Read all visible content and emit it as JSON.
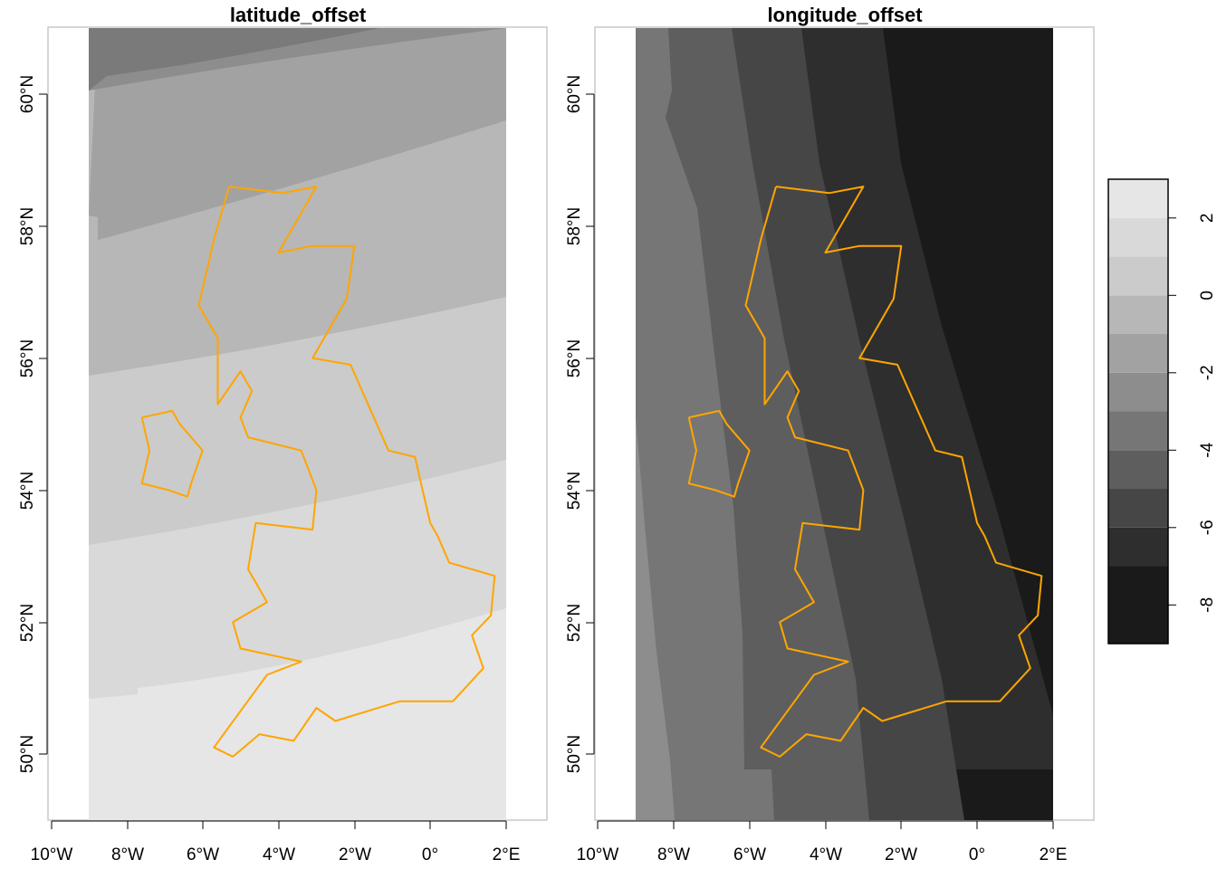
{
  "panels": [
    {
      "title": "latitude_offset",
      "x_ticks": [
        "10°W",
        "8°W",
        "6°W",
        "4°W",
        "2°W",
        "0°",
        "2°E"
      ],
      "y_ticks": [
        "50°N",
        "52°N",
        "54°N",
        "56°N",
        "58°N",
        "60°N"
      ]
    },
    {
      "title": "longitude_offset",
      "x_ticks": [
        "10°W",
        "8°W",
        "6°W",
        "4°W",
        "2°W",
        "0°",
        "2°E"
      ],
      "y_ticks": [
        "50°N",
        "52°N",
        "54°N",
        "56°N",
        "58°N",
        "60°N"
      ]
    }
  ],
  "legend": {
    "tick_labels": [
      "2",
      "0",
      "-2",
      "-4",
      "-6",
      "-8"
    ],
    "tick_values": [
      2,
      0,
      -2,
      -4,
      -6,
      -8
    ],
    "range": [
      -9,
      3
    ],
    "bins": [
      {
        "from": -9,
        "to": -7,
        "color": "#1a1a1a"
      },
      {
        "from": -7,
        "to": -6,
        "color": "#2e2e2e"
      },
      {
        "from": -6,
        "to": -5,
        "color": "#464646"
      },
      {
        "from": -5,
        "to": -4,
        "color": "#5e5e5e"
      },
      {
        "from": -4,
        "to": -3,
        "color": "#767676"
      },
      {
        "from": -3,
        "to": -2,
        "color": "#8d8d8d"
      },
      {
        "from": -2,
        "to": -1,
        "color": "#a2a2a2"
      },
      {
        "from": -1,
        "to": 0,
        "color": "#b7b7b7"
      },
      {
        "from": 0,
        "to": 1,
        "color": "#cbcbcb"
      },
      {
        "from": 1,
        "to": 2,
        "color": "#d9d9d9"
      },
      {
        "from": 2,
        "to": 3,
        "color": "#e6e6e6"
      }
    ]
  },
  "outline_color": "#ffa500",
  "map_extent": {
    "lon": [
      -9,
      2
    ],
    "lat": [
      49,
      61
    ]
  },
  "outline_coords": [
    [
      -5.3,
      58.6
    ],
    [
      -3.9,
      58.5
    ],
    [
      -3.0,
      58.6
    ],
    [
      -4.0,
      57.6
    ],
    [
      -3.1,
      57.7
    ],
    [
      -2.0,
      57.7
    ],
    [
      -2.2,
      56.9
    ],
    [
      -3.1,
      56.0
    ],
    [
      -2.1,
      55.9
    ],
    [
      -1.1,
      54.6
    ],
    [
      -0.4,
      54.5
    ],
    [
      0.0,
      53.5
    ],
    [
      0.2,
      53.3
    ],
    [
      0.5,
      52.9
    ],
    [
      1.7,
      52.7
    ],
    [
      1.6,
      52.1
    ],
    [
      1.1,
      51.8
    ],
    [
      1.4,
      51.3
    ],
    [
      0.6,
      50.8
    ],
    [
      -0.8,
      50.8
    ],
    [
      -2.5,
      50.5
    ],
    [
      -3.0,
      50.7
    ],
    [
      -3.6,
      50.2
    ],
    [
      -4.5,
      50.3
    ],
    [
      -5.2,
      49.96
    ],
    [
      -5.7,
      50.1
    ],
    [
      -4.3,
      51.2
    ],
    [
      -3.4,
      51.4
    ],
    [
      -5.0,
      51.6
    ],
    [
      -5.2,
      52.0
    ],
    [
      -4.3,
      52.3
    ],
    [
      -4.8,
      52.8
    ],
    [
      -4.6,
      53.5
    ],
    [
      -3.1,
      53.4
    ],
    [
      -3.0,
      54.0
    ],
    [
      -3.4,
      54.6
    ],
    [
      -4.8,
      54.8
    ],
    [
      -5.0,
      55.1
    ],
    [
      -4.7,
      55.5
    ],
    [
      -5.0,
      55.8
    ],
    [
      -5.6,
      55.3
    ],
    [
      -5.6,
      56.3
    ],
    [
      -6.1,
      56.8
    ],
    [
      -5.7,
      57.8
    ],
    [
      -5.3,
      58.6
    ]
  ],
  "ireland_coords": [
    [
      -7.6,
      55.1
    ],
    [
      -6.8,
      55.2
    ],
    [
      -6.6,
      55.0
    ],
    [
      -6.0,
      54.6
    ],
    [
      -6.3,
      54.1
    ],
    [
      -6.4,
      53.9
    ],
    [
      -6.9,
      54.0
    ],
    [
      -7.6,
      54.1
    ],
    [
      -7.4,
      54.6
    ],
    [
      -7.6,
      55.1
    ]
  ]
}
